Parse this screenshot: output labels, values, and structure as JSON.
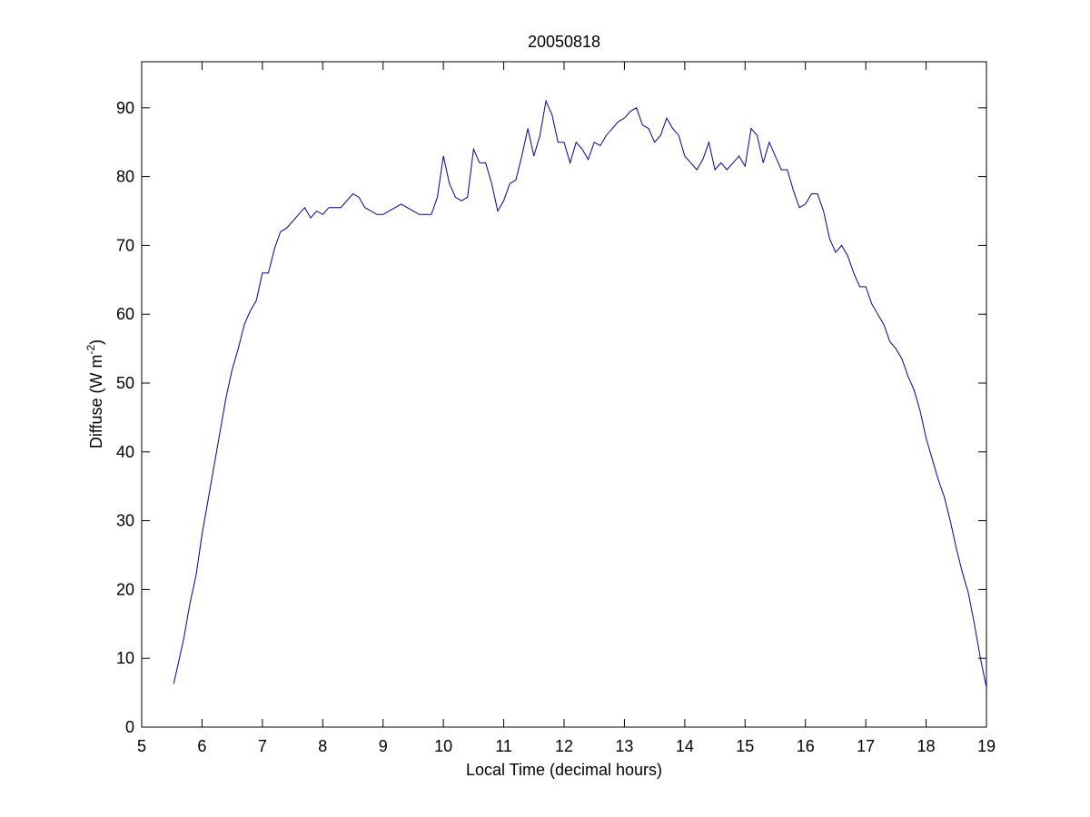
{
  "chart_data": {
    "type": "line",
    "title": "20050818",
    "x_label": "Local Time (decimal hours)",
    "y_label": [
      "Diffuse (W m",
      "-2",
      ")"
    ],
    "xlim": [
      5,
      19
    ],
    "ylim": [
      0,
      96.7
    ],
    "xticks": [
      5,
      6,
      7,
      8,
      9,
      10,
      11,
      12,
      13,
      14,
      15,
      16,
      17,
      18,
      19
    ],
    "yticks": [
      0,
      10,
      20,
      30,
      40,
      50,
      60,
      70,
      80,
      90
    ],
    "x": [
      5.53,
      5.6,
      5.7,
      5.8,
      5.9,
      6.0,
      6.1,
      6.2,
      6.3,
      6.4,
      6.5,
      6.6,
      6.7,
      6.8,
      6.9,
      7.0,
      7.1,
      7.2,
      7.3,
      7.4,
      7.5,
      7.6,
      7.7,
      7.8,
      7.9,
      8.0,
      8.1,
      8.2,
      8.3,
      8.4,
      8.5,
      8.6,
      8.7,
      8.8,
      8.9,
      9.0,
      9.1,
      9.2,
      9.3,
      9.4,
      9.5,
      9.6,
      9.7,
      9.8,
      9.9,
      10.0,
      10.1,
      10.2,
      10.3,
      10.4,
      10.5,
      10.6,
      10.7,
      10.8,
      10.9,
      11.0,
      11.1,
      11.2,
      11.3,
      11.4,
      11.5,
      11.6,
      11.7,
      11.8,
      11.9,
      12.0,
      12.1,
      12.2,
      12.3,
      12.4,
      12.5,
      12.6,
      12.7,
      12.8,
      12.9,
      13.0,
      13.1,
      13.2,
      13.3,
      13.4,
      13.5,
      13.6,
      13.7,
      13.8,
      13.9,
      14.0,
      14.1,
      14.2,
      14.3,
      14.4,
      14.5,
      14.6,
      14.7,
      14.8,
      14.9,
      15.0,
      15.1,
      15.2,
      15.3,
      15.4,
      15.5,
      15.6,
      15.7,
      15.8,
      15.9,
      16.0,
      16.1,
      16.2,
      16.3,
      16.4,
      16.5,
      16.6,
      16.7,
      16.8,
      16.9,
      17.0,
      17.1,
      17.2,
      17.3,
      17.4,
      17.5,
      17.6,
      17.7,
      17.8,
      17.9,
      18.0,
      18.1,
      18.2,
      18.3,
      18.4,
      18.5,
      18.6,
      18.7,
      18.8,
      18.9,
      19.0
    ],
    "series": [
      {
        "name": "Diffuse",
        "color": "#0000a0",
        "values": [
          6.3,
          9,
          13,
          18,
          22,
          28,
          33,
          38,
          43,
          48,
          52,
          55,
          58.5,
          60.5,
          62,
          66,
          66,
          69.5,
          72,
          72.5,
          73.5,
          74.5,
          75.5,
          74,
          75,
          74.5,
          75.5,
          75.5,
          75.5,
          76.5,
          77.5,
          77,
          75.5,
          75,
          74.5,
          74.5,
          75,
          75.5,
          76,
          75.5,
          75,
          74.5,
          74.5,
          74.5,
          77,
          83,
          79,
          77,
          76.5,
          77,
          84,
          82,
          82,
          79,
          75,
          76.5,
          79,
          79.5,
          83,
          87,
          83,
          86,
          91,
          89,
          85,
          85,
          82,
          85,
          84,
          82.5,
          85,
          84.5,
          86,
          87,
          88,
          88.5,
          89.5,
          90,
          87.5,
          87,
          85,
          86,
          88.5,
          87,
          86,
          83,
          82,
          81,
          82.5,
          85,
          81,
          82,
          81,
          82,
          83,
          81.5,
          87,
          86,
          82,
          85,
          83,
          81,
          81,
          78,
          75.5,
          76,
          77.5,
          77.5,
          75,
          71,
          69,
          70,
          68.5,
          66,
          64,
          64,
          61.5,
          60,
          58.5,
          56,
          55,
          53.5,
          51,
          49,
          46,
          42,
          39,
          36,
          33.5,
          30,
          26,
          22.5,
          19.5,
          15,
          10,
          5.8
        ]
      }
    ]
  }
}
